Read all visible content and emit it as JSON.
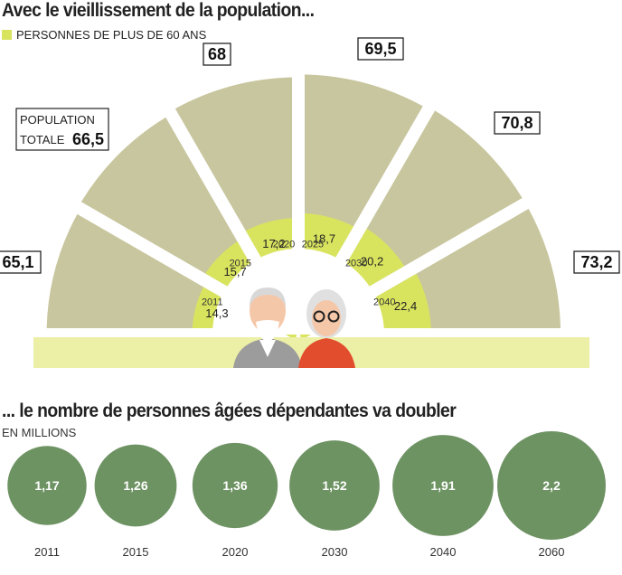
{
  "colors": {
    "total": "#c8c69e",
    "seniors": "#d9e45e",
    "base": "#ecefa6",
    "bubble": "#6e9363",
    "frame": "#222222"
  },
  "header": {
    "title": "Avec le vieillissement de la population...",
    "legend_label": "PERSONNES DE PLUS DE 60 ANS"
  },
  "pop_caption": {
    "line1": "POPULATION",
    "line2": "TOTALE"
  },
  "section2": {
    "title": "... le nombre de personnes âgées dépendantes va doubler",
    "unit": "EN MILLIONS"
  },
  "chart_data": [
    {
      "type": "pie",
      "title": "Avec le vieillissement de la population...",
      "categories": [
        "2011",
        "2015",
        "2020",
        "2025",
        "2030",
        "2040"
      ],
      "series": [
        {
          "name": "POPULATION TOTALE",
          "values": [
            65.1,
            66.5,
            68,
            69.5,
            70.8,
            73.2
          ],
          "labels": [
            "65,1",
            "66,5",
            "68",
            "69,5",
            "70,8",
            "73,2"
          ]
        },
        {
          "name": "PERSONNES DE PLUS DE 60 ANS",
          "values": [
            14.3,
            15.7,
            17.2,
            18.7,
            20.2,
            22.4
          ],
          "labels": [
            "14,3",
            "15,7",
            "17,2",
            "18,7",
            "20,2",
            "22,4"
          ]
        }
      ]
    },
    {
      "type": "scatter",
      "title": "... le nombre de personnes âgées dépendantes va doubler",
      "ylabel": "EN MILLIONS",
      "categories": [
        "2011",
        "2015",
        "2020",
        "2030",
        "2040",
        "2060"
      ],
      "values": [
        1.17,
        1.26,
        1.36,
        1.52,
        1.91,
        2.2
      ],
      "labels": [
        "1,17",
        "1,26",
        "1,36",
        "1,52",
        "1,91",
        "2,2"
      ]
    }
  ]
}
